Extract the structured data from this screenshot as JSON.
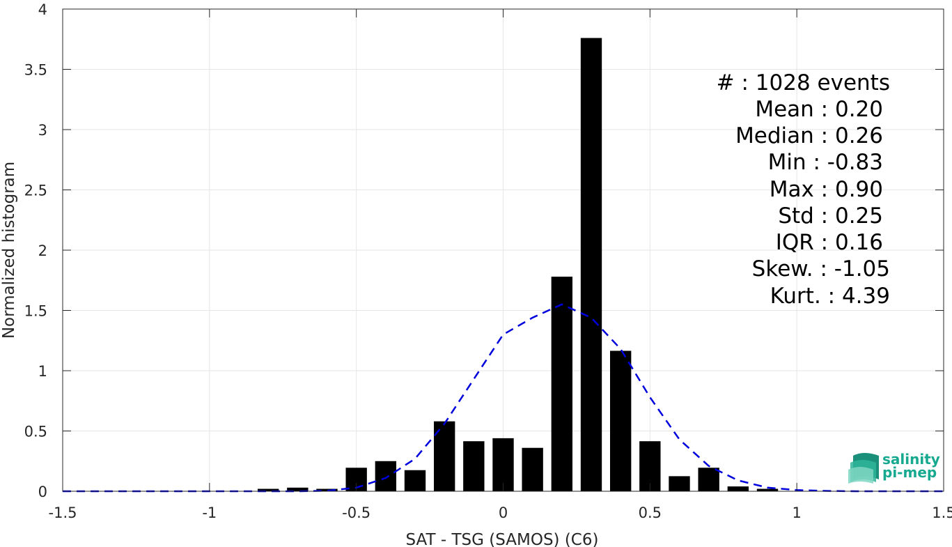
{
  "chart_data": {
    "type": "bar",
    "xlabel": "SAT - TSG (SAMOS) (C6)",
    "ylabel": "Normalized histogram",
    "xlim": [
      -1.5,
      1.5
    ],
    "ylim": [
      0,
      4
    ],
    "xticks": [
      "-1.5",
      "-1",
      "-0.5",
      "0",
      "0.5",
      "1",
      "1.5"
    ],
    "yticks": [
      "0",
      "0.5",
      "1",
      "1.5",
      "2",
      "2.5",
      "3",
      "3.5",
      "4"
    ],
    "grid": true,
    "bin_width": 0.1,
    "x": [
      -0.8,
      -0.7,
      -0.6,
      -0.5,
      -0.4,
      -0.3,
      -0.2,
      -0.1,
      0.0,
      0.1,
      0.2,
      0.3,
      0.4,
      0.5,
      0.6,
      0.7,
      0.8,
      0.9
    ],
    "values": [
      0.02,
      0.03,
      0.02,
      0.195,
      0.25,
      0.175,
      0.58,
      0.415,
      0.44,
      0.36,
      1.78,
      3.76,
      1.165,
      0.415,
      0.125,
      0.195,
      0.04,
      0.02
    ],
    "fit_curve": {
      "style": "dashed",
      "color": "#0000dd",
      "x": [
        -1.5,
        -1.4,
        -1.3,
        -1.2,
        -1.1,
        -1.0,
        -0.9,
        -0.8,
        -0.7,
        -0.6,
        -0.5,
        -0.4,
        -0.3,
        -0.2,
        -0.1,
        0.0,
        0.1,
        0.2,
        0.3,
        0.4,
        0.5,
        0.6,
        0.7,
        0.8,
        0.9,
        1.0,
        1.1,
        1.2,
        1.3,
        1.4,
        1.5
      ],
      "y": [
        0,
        0,
        0,
        0,
        0,
        0,
        0,
        0,
        0,
        0.004,
        0.03,
        0.11,
        0.27,
        0.56,
        0.93,
        1.3,
        1.44,
        1.55,
        1.44,
        1.18,
        0.78,
        0.43,
        0.21,
        0.09,
        0.03,
        0.01,
        0.003,
        0,
        0,
        0,
        0
      ]
    },
    "bar_color": "#000000"
  },
  "stats": {
    "lines": [
      "#  : 1028 events",
      "Mean : 0.20",
      "Median : 0.26",
      "Min : -0.83",
      "Max : 0.90",
      "Std : 0.25",
      "IQR : 0.16",
      "Skew. : -1.05",
      "Kurt. : 4.39"
    ]
  },
  "logo": {
    "line1": "salinity",
    "line2": "pi-mep",
    "color": "#16a98f"
  }
}
